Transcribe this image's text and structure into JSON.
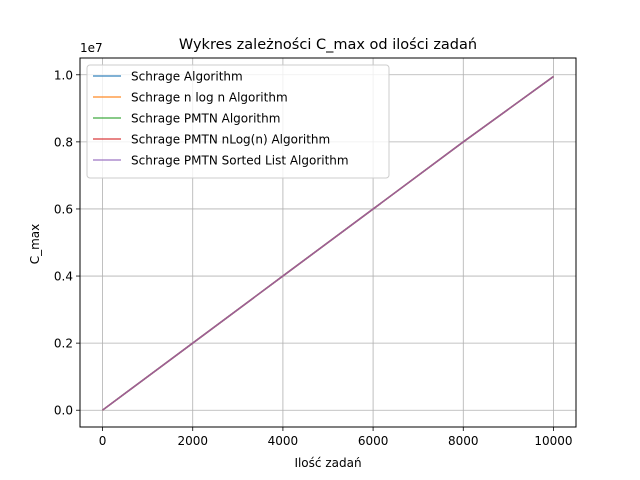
{
  "chart_data": {
    "type": "line",
    "title": "Wykres zależności C_max od ilości zadań",
    "xlabel": "Ilość zadań",
    "ylabel": "C_max",
    "y_offset_label": "1e7",
    "xlim": [
      -500,
      10500
    ],
    "ylim": [
      -0.05,
      1.05
    ],
    "x_ticks": [
      0,
      2000,
      4000,
      6000,
      8000,
      10000
    ],
    "x_tick_labels": [
      "0",
      "2000",
      "4000",
      "6000",
      "8000",
      "10000"
    ],
    "y_ticks": [
      0.0,
      0.2,
      0.4,
      0.6,
      0.8,
      1.0
    ],
    "y_tick_labels": [
      "0.0",
      "0.2",
      "0.4",
      "0.6",
      "0.8",
      "1.0"
    ],
    "grid": true,
    "legend_position": "upper-left",
    "series": [
      {
        "name": "Schrage Algorithm",
        "color": "#1f77b4",
        "x": [
          0,
          2000,
          4000,
          6000,
          8000,
          10000
        ],
        "y": [
          0.0,
          0.2,
          0.4,
          0.6,
          0.8,
          0.995
        ]
      },
      {
        "name": "Schrage n log n Algorithm",
        "color": "#ff7f0e",
        "x": [
          0,
          2000,
          4000,
          6000,
          8000,
          10000
        ],
        "y": [
          0.0,
          0.2,
          0.4,
          0.6,
          0.8,
          0.995
        ]
      },
      {
        "name": "Schrage PMTN Algorithm",
        "color": "#2ca02c",
        "x": [
          0,
          2000,
          4000,
          6000,
          8000,
          10000
        ],
        "y": [
          0.0,
          0.2,
          0.4,
          0.6,
          0.8,
          0.995
        ]
      },
      {
        "name": "Schrage PMTN nLog(n) Algorithm",
        "color": "#d62728",
        "x": [
          0,
          2000,
          4000,
          6000,
          8000,
          10000
        ],
        "y": [
          0.0,
          0.2,
          0.4,
          0.6,
          0.8,
          0.995
        ]
      },
      {
        "name": "Schrage PMTN Sorted List Algorithm",
        "color": "#9467bd",
        "x": [
          0,
          2000,
          4000,
          6000,
          8000,
          10000
        ],
        "y": [
          0.0,
          0.2,
          0.4,
          0.6,
          0.8,
          0.995
        ]
      }
    ]
  }
}
